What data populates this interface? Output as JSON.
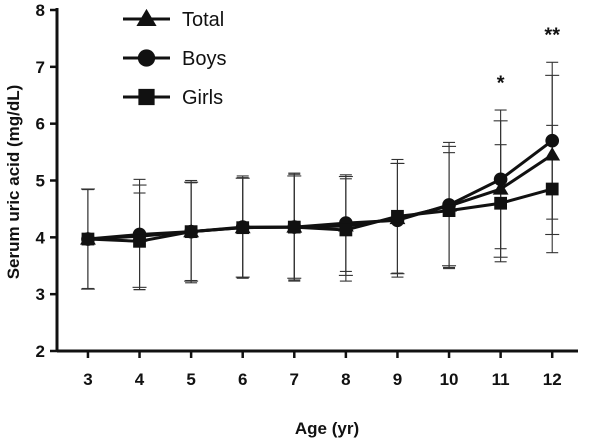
{
  "chart_data": {
    "type": "line",
    "xlabel": "Age (yr)",
    "ylabel": "Serum uric acid (mg/dL)",
    "x": [
      3,
      4,
      5,
      6,
      7,
      8,
      9,
      10,
      11,
      12
    ],
    "xlim": [
      2.4,
      12.5
    ],
    "ylim": [
      2,
      8
    ],
    "yticks": [
      2,
      3,
      4,
      5,
      6,
      7,
      8
    ],
    "series": [
      {
        "name": "Total",
        "marker": "triangle",
        "values": [
          3.97,
          4.02,
          4.1,
          4.17,
          4.18,
          4.2,
          4.33,
          4.55,
          4.85,
          5.45
        ],
        "sd": [
          0.88,
          0.9,
          0.87,
          0.87,
          0.9,
          0.87,
          0.97,
          1.05,
          1.2,
          1.4
        ]
      },
      {
        "name": "Boys",
        "marker": "circle",
        "values": [
          3.97,
          4.05,
          4.1,
          4.18,
          4.18,
          4.25,
          4.3,
          4.57,
          5.02,
          5.7
        ],
        "sd": [
          0.88,
          0.97,
          0.9,
          0.9,
          0.95,
          0.85,
          1.0,
          1.1,
          1.22,
          1.38
        ]
      },
      {
        "name": "Girls",
        "marker": "square",
        "values": [
          3.97,
          3.93,
          4.1,
          4.17,
          4.18,
          4.13,
          4.37,
          4.47,
          4.6,
          4.85
        ],
        "sd": [
          0.87,
          0.85,
          0.86,
          0.88,
          0.93,
          0.9,
          1.0,
          1.02,
          1.03,
          1.12
        ]
      }
    ],
    "annotations": [
      {
        "x": 11,
        "y": 6.6,
        "text": "*"
      },
      {
        "x": 12,
        "y": 7.45,
        "text": "**"
      }
    ],
    "legend_position": "top-left",
    "grid": false,
    "colors": {
      "line": "#111111",
      "error_bar": "#333333"
    }
  }
}
